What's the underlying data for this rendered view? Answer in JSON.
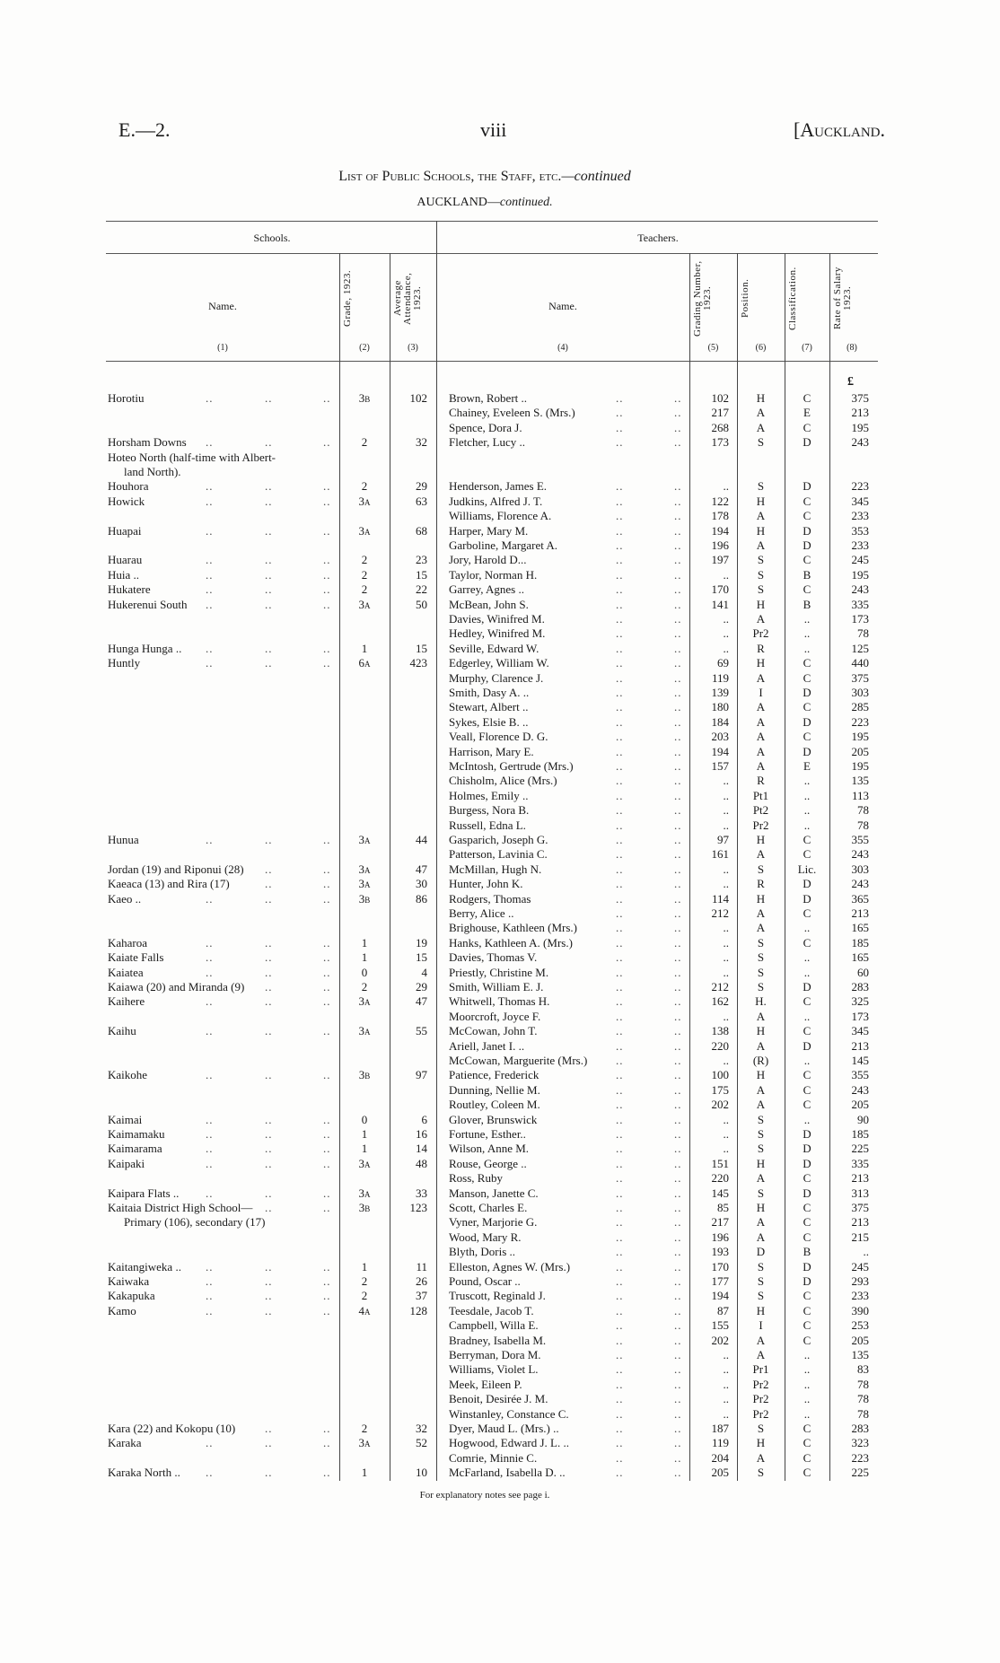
{
  "page_header": {
    "left": "E.—2.",
    "center": "viii",
    "right": "[Auckland."
  },
  "title": {
    "main": "List of Public Schools, the Staff, etc.",
    "suffix": "—continued"
  },
  "subtitle": {
    "main": "AUCKLAND—",
    "suffix": "continued."
  },
  "table": {
    "group_headers": {
      "schools": "Schools.",
      "teachers": "Teachers."
    },
    "columns": [
      {
        "label": "Name.",
        "number": "(1)"
      },
      {
        "label": "Grade, 1923.",
        "number": "(2)"
      },
      {
        "label": "Average Attendance, 1923.",
        "number": "(3)"
      },
      {
        "label": "Name.",
        "number": "(4)"
      },
      {
        "label": "Grading Number, 1923.",
        "number": "(5)"
      },
      {
        "label": "Position.",
        "number": "(6)"
      },
      {
        "label": "Classification.",
        "number": "(7)"
      },
      {
        "label": "Rate of Salary 1923.",
        "number": "(8)"
      }
    ],
    "currency_symbol": "£",
    "leader": "..",
    "rows": [
      [
        "Horotiu",
        "3B",
        "102",
        "Brown, Robert ..",
        "102",
        "H",
        "C",
        "375"
      ],
      [
        "",
        "",
        "",
        "Chainey, Eveleen S. (Mrs.)",
        "217",
        "A",
        "E",
        "213"
      ],
      [
        "",
        "",
        "",
        "Spence, Dora J.",
        "268",
        "A",
        "C",
        "195"
      ],
      [
        "Horsham Downs",
        "2",
        "32",
        "Fletcher, Lucy ..",
        "173",
        "S",
        "D",
        "243"
      ],
      [
        "Hoteo North (half-time with Albert-",
        "",
        "",
        "",
        "",
        "",
        "",
        ""
      ],
      [
        "   land North).",
        "",
        "",
        "",
        "",
        "",
        "",
        ""
      ],
      [
        "Houhora",
        "2",
        "29",
        "Henderson, James E.",
        "..",
        "S",
        "D",
        "223"
      ],
      [
        "Howick",
        "3A",
        "63",
        "Judkins, Alfred J. T.",
        "122",
        "H",
        "C",
        "345"
      ],
      [
        "",
        "",
        "",
        "Williams, Florence A.",
        "178",
        "A",
        "C",
        "233"
      ],
      [
        "Huapai",
        "3A",
        "68",
        "Harper, Mary M.",
        "194",
        "H",
        "D",
        "353"
      ],
      [
        "",
        "",
        "",
        "Garboline, Margaret A.",
        "196",
        "A",
        "D",
        "233"
      ],
      [
        "Huarau",
        "2",
        "23",
        "Jory, Harold D...",
        "197",
        "S",
        "C",
        "245"
      ],
      [
        "Huia ..",
        "2",
        "15",
        "Taylor, Norman H.",
        "..",
        "S",
        "B",
        "195"
      ],
      [
        "Hukatere",
        "2",
        "22",
        "Garrey, Agnes ..",
        "170",
        "S",
        "C",
        "243"
      ],
      [
        "Hukerenui South",
        "3A",
        "50",
        "McBean, John S.",
        "141",
        "H",
        "B",
        "335"
      ],
      [
        "",
        "",
        "",
        "Davies, Winifred M.",
        "..",
        "A",
        "..",
        "173"
      ],
      [
        "",
        "",
        "",
        "Hedley, Winifred M.",
        "..",
        "Pr2",
        "..",
        "78"
      ],
      [
        "Hunga Hunga ..",
        "1",
        "15",
        "Seville, Edward W.",
        "..",
        "R",
        "..",
        "125"
      ],
      [
        "Huntly",
        "6A",
        "423",
        "Edgerley, William W.",
        "69",
        "H",
        "C",
        "440"
      ],
      [
        "",
        "",
        "",
        "Murphy, Clarence J.",
        "119",
        "A",
        "C",
        "375"
      ],
      [
        "",
        "",
        "",
        "Smith, Dasy A. ..",
        "139",
        "I",
        "D",
        "303"
      ],
      [
        "",
        "",
        "",
        "Stewart, Albert ..",
        "180",
        "A",
        "C",
        "285"
      ],
      [
        "",
        "",
        "",
        "Sykes, Elsie B. ..",
        "184",
        "A",
        "D",
        "223"
      ],
      [
        "",
        "",
        "",
        "Veall, Florence D. G.",
        "203",
        "A",
        "C",
        "195"
      ],
      [
        "",
        "",
        "",
        "Harrison, Mary E.",
        "194",
        "A",
        "D",
        "205"
      ],
      [
        "",
        "",
        "",
        "McIntosh, Gertrude (Mrs.)",
        "157",
        "A",
        "E",
        "195"
      ],
      [
        "",
        "",
        "",
        "Chisholm, Alice (Mrs.)",
        "..",
        "R",
        "..",
        "135"
      ],
      [
        "",
        "",
        "",
        "Holmes, Emily ..",
        "..",
        "Pt1",
        "..",
        "113"
      ],
      [
        "",
        "",
        "",
        "Burgess, Nora B.",
        "..",
        "Pt2",
        "..",
        "78"
      ],
      [
        "",
        "",
        "",
        "Russell, Edna L.",
        "..",
        "Pr2",
        "..",
        "78"
      ],
      [
        "Hunua",
        "3A",
        "44",
        "Gasparich, Joseph G.",
        "97",
        "H",
        "C",
        "355"
      ],
      [
        "",
        "",
        "",
        "Patterson, Lavinia C.",
        "161",
        "A",
        "C",
        "243"
      ],
      [
        "Jordan (19) and Riponui (28)",
        "3A",
        "47",
        "McMillan, Hugh N.",
        "..",
        "S",
        "Lic.",
        "303"
      ],
      [
        "Kaeaca (13) and Rira (17)",
        "3A",
        "30",
        "Hunter, John K.",
        "..",
        "R",
        "D",
        "243"
      ],
      [
        "Kaeo ..",
        "3B",
        "86",
        "Rodgers, Thomas",
        "114",
        "H",
        "D",
        "365"
      ],
      [
        "",
        "",
        "",
        "Berry, Alice ..",
        "212",
        "A",
        "C",
        "213"
      ],
      [
        "",
        "",
        "",
        "Brighouse, Kathleen (Mrs.)",
        "..",
        "A",
        "..",
        "165"
      ],
      [
        "Kaharoa",
        "1",
        "19",
        "Hanks, Kathleen A. (Mrs.)",
        "..",
        "S",
        "C",
        "185"
      ],
      [
        "Kaiate Falls",
        "1",
        "15",
        "Davies, Thomas V.",
        "..",
        "S",
        "..",
        "165"
      ],
      [
        "Kaiatea",
        "0",
        "4",
        "Priestly, Christine M.",
        "..",
        "S",
        "..",
        "60"
      ],
      [
        "Kaiawa (20) and Miranda (9)",
        "2",
        "29",
        "Smith, William E. J.",
        "212",
        "S",
        "D",
        "283"
      ],
      [
        "Kaihere",
        "3A",
        "47",
        "Whitwell, Thomas H.",
        "162",
        "H.",
        "C",
        "325"
      ],
      [
        "",
        "",
        "",
        "Moorcroft, Joyce F.",
        "..",
        "A",
        "..",
        "173"
      ],
      [
        "Kaihu",
        "3A",
        "55",
        "McCowan, John T.",
        "138",
        "H",
        "C",
        "345"
      ],
      [
        "",
        "",
        "",
        "Ariell, Janet I. ..",
        "220",
        "A",
        "D",
        "213"
      ],
      [
        "",
        "",
        "",
        "McCowan, Marguerite (Mrs.)",
        "..",
        "(R)",
        "..",
        "145"
      ],
      [
        "Kaikohe",
        "3B",
        "97",
        "Patience, Frederick",
        "100",
        "H",
        "C",
        "355"
      ],
      [
        "",
        "",
        "",
        "Dunning, Nellie M.",
        "175",
        "A",
        "C",
        "243"
      ],
      [
        "",
        "",
        "",
        "Routley, Coleen M.",
        "202",
        "A",
        "C",
        "205"
      ],
      [
        "Kaimai",
        "0",
        "6",
        "Glover, Brunswick",
        "..",
        "S",
        "..",
        "90"
      ],
      [
        "Kaimamaku",
        "1",
        "16",
        "Fortune, Esther..",
        "..",
        "S",
        "D",
        "185"
      ],
      [
        "Kaimarama",
        "1",
        "14",
        "Wilson, Anne M.",
        "..",
        "S",
        "D",
        "225"
      ],
      [
        "Kaipaki",
        "3A",
        "48",
        "Rouse, George ..",
        "151",
        "H",
        "D",
        "335"
      ],
      [
        "",
        "",
        "",
        "Ross, Ruby",
        "220",
        "A",
        "C",
        "213"
      ],
      [
        "Kaipara Flats ..",
        "3A",
        "33",
        "Manson, Janette C.",
        "145",
        "S",
        "D",
        "313"
      ],
      [
        "Kaitaia District High School—",
        "3B",
        "123",
        "Scott, Charles E.",
        "85",
        "H",
        "C",
        "375"
      ],
      [
        "   Primary (106), secondary (17)",
        "",
        "",
        "Vyner, Marjorie G.",
        "217",
        "A",
        "C",
        "213"
      ],
      [
        "",
        "",
        "",
        "Wood, Mary R.",
        "196",
        "A",
        "C",
        "215"
      ],
      [
        "",
        "",
        "",
        "Blyth, Doris ..",
        "193",
        "D",
        "B",
        ".."
      ],
      [
        "Kaitangiweka ..",
        "1",
        "11",
        "Elleston, Agnes W. (Mrs.)",
        "170",
        "S",
        "D",
        "245"
      ],
      [
        "Kaiwaka",
        "2",
        "26",
        "Pound, Oscar ..",
        "177",
        "S",
        "D",
        "293"
      ],
      [
        "Kakapuka",
        "2",
        "37",
        "Truscott, Reginald J.",
        "194",
        "S",
        "C",
        "233"
      ],
      [
        "Kamo",
        "4A",
        "128",
        "Teesdale, Jacob T.",
        "87",
        "H",
        "C",
        "390"
      ],
      [
        "",
        "",
        "",
        "Campbell, Willa E.",
        "155",
        "I",
        "C",
        "253"
      ],
      [
        "",
        "",
        "",
        "Bradney, Isabella M.",
        "202",
        "A",
        "C",
        "205"
      ],
      [
        "",
        "",
        "",
        "Berryman, Dora M.",
        "..",
        "A",
        "..",
        "135"
      ],
      [
        "",
        "",
        "",
        "Williams, Violet L.",
        "..",
        "Pr1",
        "..",
        "83"
      ],
      [
        "",
        "",
        "",
        "Meek, Eileen P.",
        "..",
        "Pr2",
        "..",
        "78"
      ],
      [
        "",
        "",
        "",
        "Benoit, Desirée J. M.",
        "..",
        "Pr2",
        "..",
        "78"
      ],
      [
        "",
        "",
        "",
        "Winstanley, Constance C.",
        "..",
        "Pr2",
        "..",
        "78"
      ],
      [
        "Kara (22) and Kokopu (10)",
        "2",
        "32",
        "Dyer, Maud L. (Mrs.) ..",
        "187",
        "S",
        "C",
        "283"
      ],
      [
        "Karaka",
        "3A",
        "52",
        "Hogwood, Edward J. L. ..",
        "119",
        "H",
        "C",
        "323"
      ],
      [
        "",
        "",
        "",
        "Comrie, Minnie C.",
        "204",
        "A",
        "C",
        "223"
      ],
      [
        "Karaka North ..",
        "1",
        "10",
        "McFarland, Isabella D. ..",
        "205",
        "S",
        "C",
        "225"
      ]
    ]
  },
  "footer": {
    "note": "For explanatory notes see page i."
  }
}
